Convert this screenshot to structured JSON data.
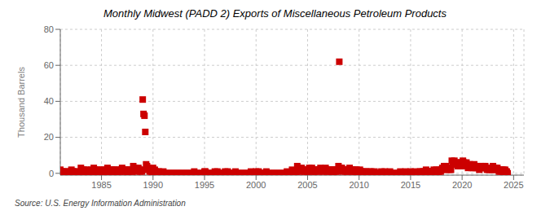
{
  "chart_data": {
    "type": "scatter",
    "title": "Monthly Midwest (PADD 2) Exports of Miscellaneous Petroleum Products",
    "ylabel": "Thousand Barrels",
    "source": "Source: U.S. Energy Information Administration",
    "color": "#cc0000",
    "marker": "square",
    "grid": true,
    "xlim": [
      1981.0,
      2026.0
    ],
    "ylim": [
      -1,
      80
    ],
    "xticks": [
      1985,
      1990,
      1995,
      2000,
      2005,
      2010,
      2015,
      2020,
      2025
    ],
    "yticks": [
      0,
      20,
      40,
      60,
      80
    ],
    "x": [
      1981.0,
      1981.08,
      1981.17,
      1981.25,
      1981.33,
      1981.42,
      1981.5,
      1981.58,
      1981.67,
      1981.75,
      1981.83,
      1981.92,
      1982.0,
      1982.08,
      1982.17,
      1982.25,
      1982.33,
      1982.42,
      1982.5,
      1982.58,
      1982.67,
      1982.75,
      1982.83,
      1982.92,
      1983.0,
      1983.08,
      1983.17,
      1983.25,
      1983.33,
      1983.42,
      1983.5,
      1983.58,
      1983.67,
      1983.75,
      1983.83,
      1983.92,
      1984.0,
      1984.08,
      1984.17,
      1984.25,
      1984.33,
      1984.42,
      1984.5,
      1984.58,
      1984.67,
      1984.75,
      1984.83,
      1984.92,
      1985.0,
      1985.08,
      1985.17,
      1985.25,
      1985.33,
      1985.42,
      1985.5,
      1985.58,
      1985.67,
      1985.75,
      1985.83,
      1985.92,
      1986.0,
      1986.08,
      1986.17,
      1986.25,
      1986.33,
      1986.42,
      1986.5,
      1986.58,
      1986.67,
      1986.75,
      1986.83,
      1986.92,
      1987.0,
      1987.08,
      1987.17,
      1987.25,
      1987.33,
      1987.42,
      1987.5,
      1987.58,
      1987.67,
      1987.75,
      1987.83,
      1987.92,
      1988.0,
      1988.08,
      1988.17,
      1988.25,
      1988.33,
      1988.42,
      1988.5,
      1988.58,
      1988.67,
      1988.75,
      1988.83,
      1988.92,
      1989.0,
      1989.08,
      1989.17,
      1989.25,
      1989.33,
      1989.42,
      1989.5,
      1989.58,
      1989.67,
      1989.75,
      1989.83,
      1989.92,
      1990.0,
      1990.08,
      1990.17,
      1990.25,
      1990.33,
      1990.42,
      1990.5,
      1990.58,
      1990.67,
      1990.75,
      1990.83,
      1990.92,
      1991.0,
      1991.08,
      1991.17,
      1991.25,
      1991.33,
      1991.42,
      1991.5,
      1991.58,
      1991.67,
      1991.75,
      1991.83,
      1991.92,
      1992.0,
      1992.08,
      1992.17,
      1992.25,
      1992.33,
      1992.42,
      1992.5,
      1992.58,
      1992.67,
      1992.75,
      1992.83,
      1992.92,
      1993.0,
      1993.08,
      1993.17,
      1993.25,
      1993.33,
      1993.42,
      1993.5,
      1993.58,
      1993.67,
      1993.75,
      1993.83,
      1993.92,
      1994.0,
      1994.08,
      1994.17,
      1994.25,
      1994.33,
      1994.42,
      1994.5,
      1994.58,
      1994.67,
      1994.75,
      1994.83,
      1994.92,
      1995.0,
      1995.08,
      1995.17,
      1995.25,
      1995.33,
      1995.42,
      1995.5,
      1995.58,
      1995.67,
      1995.75,
      1995.83,
      1995.92,
      1996.0,
      1996.08,
      1996.17,
      1996.25,
      1996.33,
      1996.42,
      1996.5,
      1996.58,
      1996.67,
      1996.75,
      1996.83,
      1996.92,
      1997.0,
      1997.08,
      1997.17,
      1997.25,
      1997.33,
      1997.42,
      1997.5,
      1997.58,
      1997.67,
      1997.75,
      1997.83,
      1997.92,
      1998.0,
      1998.08,
      1998.17,
      1998.25,
      1998.33,
      1998.42,
      1998.5,
      1998.58,
      1998.67,
      1998.75,
      1998.83,
      1998.92,
      1999.0,
      1999.08,
      1999.17,
      1999.25,
      1999.33,
      1999.42,
      1999.5,
      1999.58,
      1999.67,
      1999.75,
      1999.83,
      1999.92,
      2000.0,
      2000.08,
      2000.17,
      2000.25,
      2000.33,
      2000.42,
      2000.5,
      2000.58,
      2000.67,
      2000.75,
      2000.83,
      2000.92,
      2001.0,
      2001.08,
      2001.17,
      2001.25,
      2001.33,
      2001.42,
      2001.5,
      2001.58,
      2001.67,
      2001.75,
      2001.83,
      2001.92,
      2002.0,
      2002.08,
      2002.17,
      2002.25,
      2002.33,
      2002.42,
      2002.5,
      2002.58,
      2002.67,
      2002.75,
      2002.83,
      2002.92,
      2003.0,
      2003.08,
      2003.17,
      2003.25,
      2003.33,
      2003.42,
      2003.5,
      2003.58,
      2003.67,
      2003.75,
      2003.83,
      2003.92,
      2004.0,
      2004.08,
      2004.17,
      2004.25,
      2004.33,
      2004.42,
      2004.5,
      2004.58,
      2004.67,
      2004.75,
      2004.83,
      2004.92,
      2005.0,
      2005.08,
      2005.17,
      2005.25,
      2005.33,
      2005.42,
      2005.5,
      2005.58,
      2005.67,
      2005.75,
      2005.83,
      2005.92,
      2006.0,
      2006.08,
      2006.17,
      2006.25,
      2006.33,
      2006.42,
      2006.5,
      2006.58,
      2006.67,
      2006.75,
      2006.83,
      2006.92,
      2007.0,
      2007.08,
      2007.17,
      2007.25,
      2007.33,
      2007.42,
      2007.5,
      2007.58,
      2007.67,
      2007.75,
      2007.83,
      2007.92,
      2008.0,
      2008.08,
      2008.17,
      2008.25,
      2008.33,
      2008.42,
      2008.5,
      2008.58,
      2008.67,
      2008.75,
      2008.83,
      2008.92,
      2009.0,
      2009.08,
      2009.17,
      2009.25,
      2009.33,
      2009.42,
      2009.5,
      2009.58,
      2009.67,
      2009.75,
      2009.83,
      2009.92,
      2010.0,
      2010.08,
      2010.17,
      2010.25,
      2010.33,
      2010.42,
      2010.5,
      2010.58,
      2010.67,
      2010.75,
      2010.83,
      2010.92,
      2011.0,
      2011.08,
      2011.17,
      2011.25,
      2011.33,
      2011.42,
      2011.5,
      2011.58,
      2011.67,
      2011.75,
      2011.83,
      2011.92,
      2012.0,
      2012.08,
      2012.17,
      2012.25,
      2012.33,
      2012.42,
      2012.5,
      2012.58,
      2012.67,
      2012.75,
      2012.83,
      2012.92,
      2013.0,
      2013.08,
      2013.17,
      2013.25,
      2013.33,
      2013.42,
      2013.5,
      2013.58,
      2013.67,
      2013.75,
      2013.83,
      2013.92,
      2014.0,
      2014.08,
      2014.17,
      2014.25,
      2014.33,
      2014.42,
      2014.5,
      2014.58,
      2014.67,
      2014.75,
      2014.83,
      2014.92,
      2015.0,
      2015.08,
      2015.17,
      2015.25,
      2015.33,
      2015.42,
      2015.5,
      2015.58,
      2015.67,
      2015.75,
      2015.83,
      2015.92,
      2016.0,
      2016.08,
      2016.17,
      2016.25,
      2016.33,
      2016.42,
      2016.5,
      2016.58,
      2016.67,
      2016.75,
      2016.83,
      2016.92,
      2017.0,
      2017.08,
      2017.17,
      2017.25,
      2017.33,
      2017.42,
      2017.5,
      2017.58,
      2017.67,
      2017.75,
      2017.83,
      2017.92,
      2018.0,
      2018.08,
      2018.17,
      2018.25,
      2018.33,
      2018.42,
      2018.5,
      2018.58,
      2018.67,
      2018.75,
      2018.83,
      2018.92,
      2019.0,
      2019.08,
      2019.17,
      2019.25,
      2019.33,
      2019.42,
      2019.5,
      2019.58,
      2019.67,
      2019.75,
      2019.83,
      2019.92,
      2020.0,
      2020.08,
      2020.17,
      2020.25,
      2020.33,
      2020.42,
      2020.5,
      2020.58,
      2020.67,
      2020.75,
      2020.83,
      2020.92,
      2021.0,
      2021.08,
      2021.17,
      2021.25,
      2021.33,
      2021.42,
      2021.5,
      2021.58,
      2021.67,
      2021.75,
      2021.83,
      2021.92,
      2022.0,
      2022.08,
      2022.17,
      2022.25,
      2022.33,
      2022.42,
      2022.5,
      2022.58,
      2022.67,
      2022.75,
      2022.83,
      2022.92,
      2023.0,
      2023.08,
      2023.17,
      2023.25,
      2023.33,
      2023.42,
      2023.5,
      2023.58,
      2023.67,
      2023.75,
      2023.83,
      2023.92,
      2024.0,
      2024.08,
      2024.17,
      2024.25,
      2024.33,
      2024.42
    ],
    "values": [
      2,
      1,
      1,
      0,
      1,
      0,
      1,
      0,
      0,
      1,
      0,
      0,
      1,
      2,
      1,
      1,
      0,
      1,
      1,
      0,
      0,
      0,
      0,
      0,
      3,
      1,
      2,
      1,
      2,
      1,
      1,
      2,
      1,
      1,
      0,
      1,
      2,
      1,
      1,
      3,
      2,
      1,
      2,
      1,
      1,
      2,
      1,
      0,
      1,
      2,
      1,
      1,
      2,
      1,
      1,
      3,
      1,
      1,
      2,
      1,
      2,
      1,
      2,
      1,
      1,
      2,
      1,
      1,
      2,
      1,
      1,
      2,
      3,
      2,
      1,
      2,
      1,
      2,
      1,
      1,
      2,
      1,
      2,
      1,
      1,
      4,
      2,
      3,
      2,
      1,
      2,
      3,
      2,
      1,
      2,
      1,
      41,
      33,
      32,
      23,
      5,
      4,
      2,
      3,
      1,
      2,
      1,
      0,
      3,
      1,
      2,
      1,
      0,
      1,
      0,
      1,
      0,
      0,
      0,
      0,
      1,
      0,
      0,
      0,
      0,
      0,
      0,
      0,
      0,
      0,
      0,
      0,
      0,
      0,
      0,
      0,
      0,
      0,
      0,
      0,
      0,
      0,
      0,
      0,
      0,
      0,
      0,
      0,
      0,
      0,
      0,
      0,
      0,
      0,
      0,
      0,
      1,
      0,
      0,
      0,
      0,
      0,
      0,
      0,
      0,
      0,
      0,
      0,
      1,
      1,
      0,
      0,
      0,
      0,
      0,
      0,
      0,
      0,
      0,
      0,
      1,
      0,
      0,
      1,
      0,
      0,
      0,
      0,
      0,
      0,
      0,
      0,
      1,
      0,
      0,
      1,
      0,
      0,
      0,
      0,
      0,
      0,
      0,
      0,
      1,
      0,
      0,
      0,
      0,
      0,
      0,
      0,
      0,
      0,
      0,
      0,
      0,
      0,
      0,
      0,
      0,
      0,
      1,
      0,
      0,
      0,
      0,
      0,
      1,
      0,
      0,
      1,
      0,
      0,
      0,
      0,
      0,
      0,
      0,
      0,
      1,
      0,
      0,
      0,
      0,
      0,
      0,
      0,
      0,
      0,
      0,
      0,
      0,
      0,
      0,
      0,
      0,
      0,
      0,
      0,
      0,
      0,
      0,
      0,
      1,
      0,
      0,
      0,
      0,
      0,
      2,
      1,
      0,
      0,
      0,
      0,
      4,
      3,
      2,
      1,
      2,
      3,
      2,
      1,
      2,
      1,
      2,
      1,
      1,
      2,
      3,
      1,
      2,
      3,
      1,
      2,
      1,
      2,
      1,
      2,
      2,
      1,
      2,
      3,
      2,
      1,
      2,
      1,
      2,
      3,
      2,
      1,
      2,
      1,
      2,
      1,
      2,
      1,
      2,
      1,
      2,
      1,
      2,
      1,
      4,
      62,
      3,
      2,
      3,
      2,
      1,
      2,
      1,
      2,
      1,
      2,
      2,
      3,
      1,
      2,
      1,
      2,
      1,
      2,
      1,
      2,
      1,
      1,
      1,
      2,
      1,
      0,
      1,
      0,
      1,
      0,
      1,
      0,
      0,
      0,
      1,
      0,
      1,
      0,
      0,
      0,
      1,
      0,
      0,
      0,
      0,
      0,
      0,
      0,
      1,
      0,
      0,
      0,
      1,
      0,
      0,
      0,
      0,
      0,
      1,
      0,
      0,
      0,
      0,
      0,
      0,
      0,
      0,
      0,
      0,
      0,
      1,
      0,
      0,
      0,
      0,
      0,
      1,
      0,
      0,
      0,
      0,
      0,
      1,
      0,
      0,
      0,
      0,
      1,
      0,
      0,
      0,
      0,
      0,
      1,
      1,
      0,
      1,
      0,
      1,
      0,
      2,
      1,
      0,
      1,
      0,
      1,
      1,
      0,
      1,
      2,
      1,
      0,
      2,
      1,
      0,
      1,
      2,
      1,
      2,
      3,
      2,
      4,
      3,
      4,
      3,
      2,
      3,
      2,
      3,
      2,
      7,
      6,
      5,
      7,
      5,
      6,
      5,
      4,
      6,
      5,
      4,
      6,
      5,
      7,
      6,
      4,
      5,
      6,
      5,
      3,
      4,
      5,
      4,
      3,
      4,
      3,
      5,
      3,
      4,
      3,
      4,
      3,
      2,
      3,
      4,
      3,
      3,
      4,
      3,
      4,
      3,
      2,
      3,
      2,
      3,
      2,
      3,
      2,
      4,
      3,
      2,
      3,
      2,
      3,
      2,
      1,
      2,
      1,
      2,
      1,
      2,
      1,
      2,
      1,
      1,
      0
    ]
  }
}
